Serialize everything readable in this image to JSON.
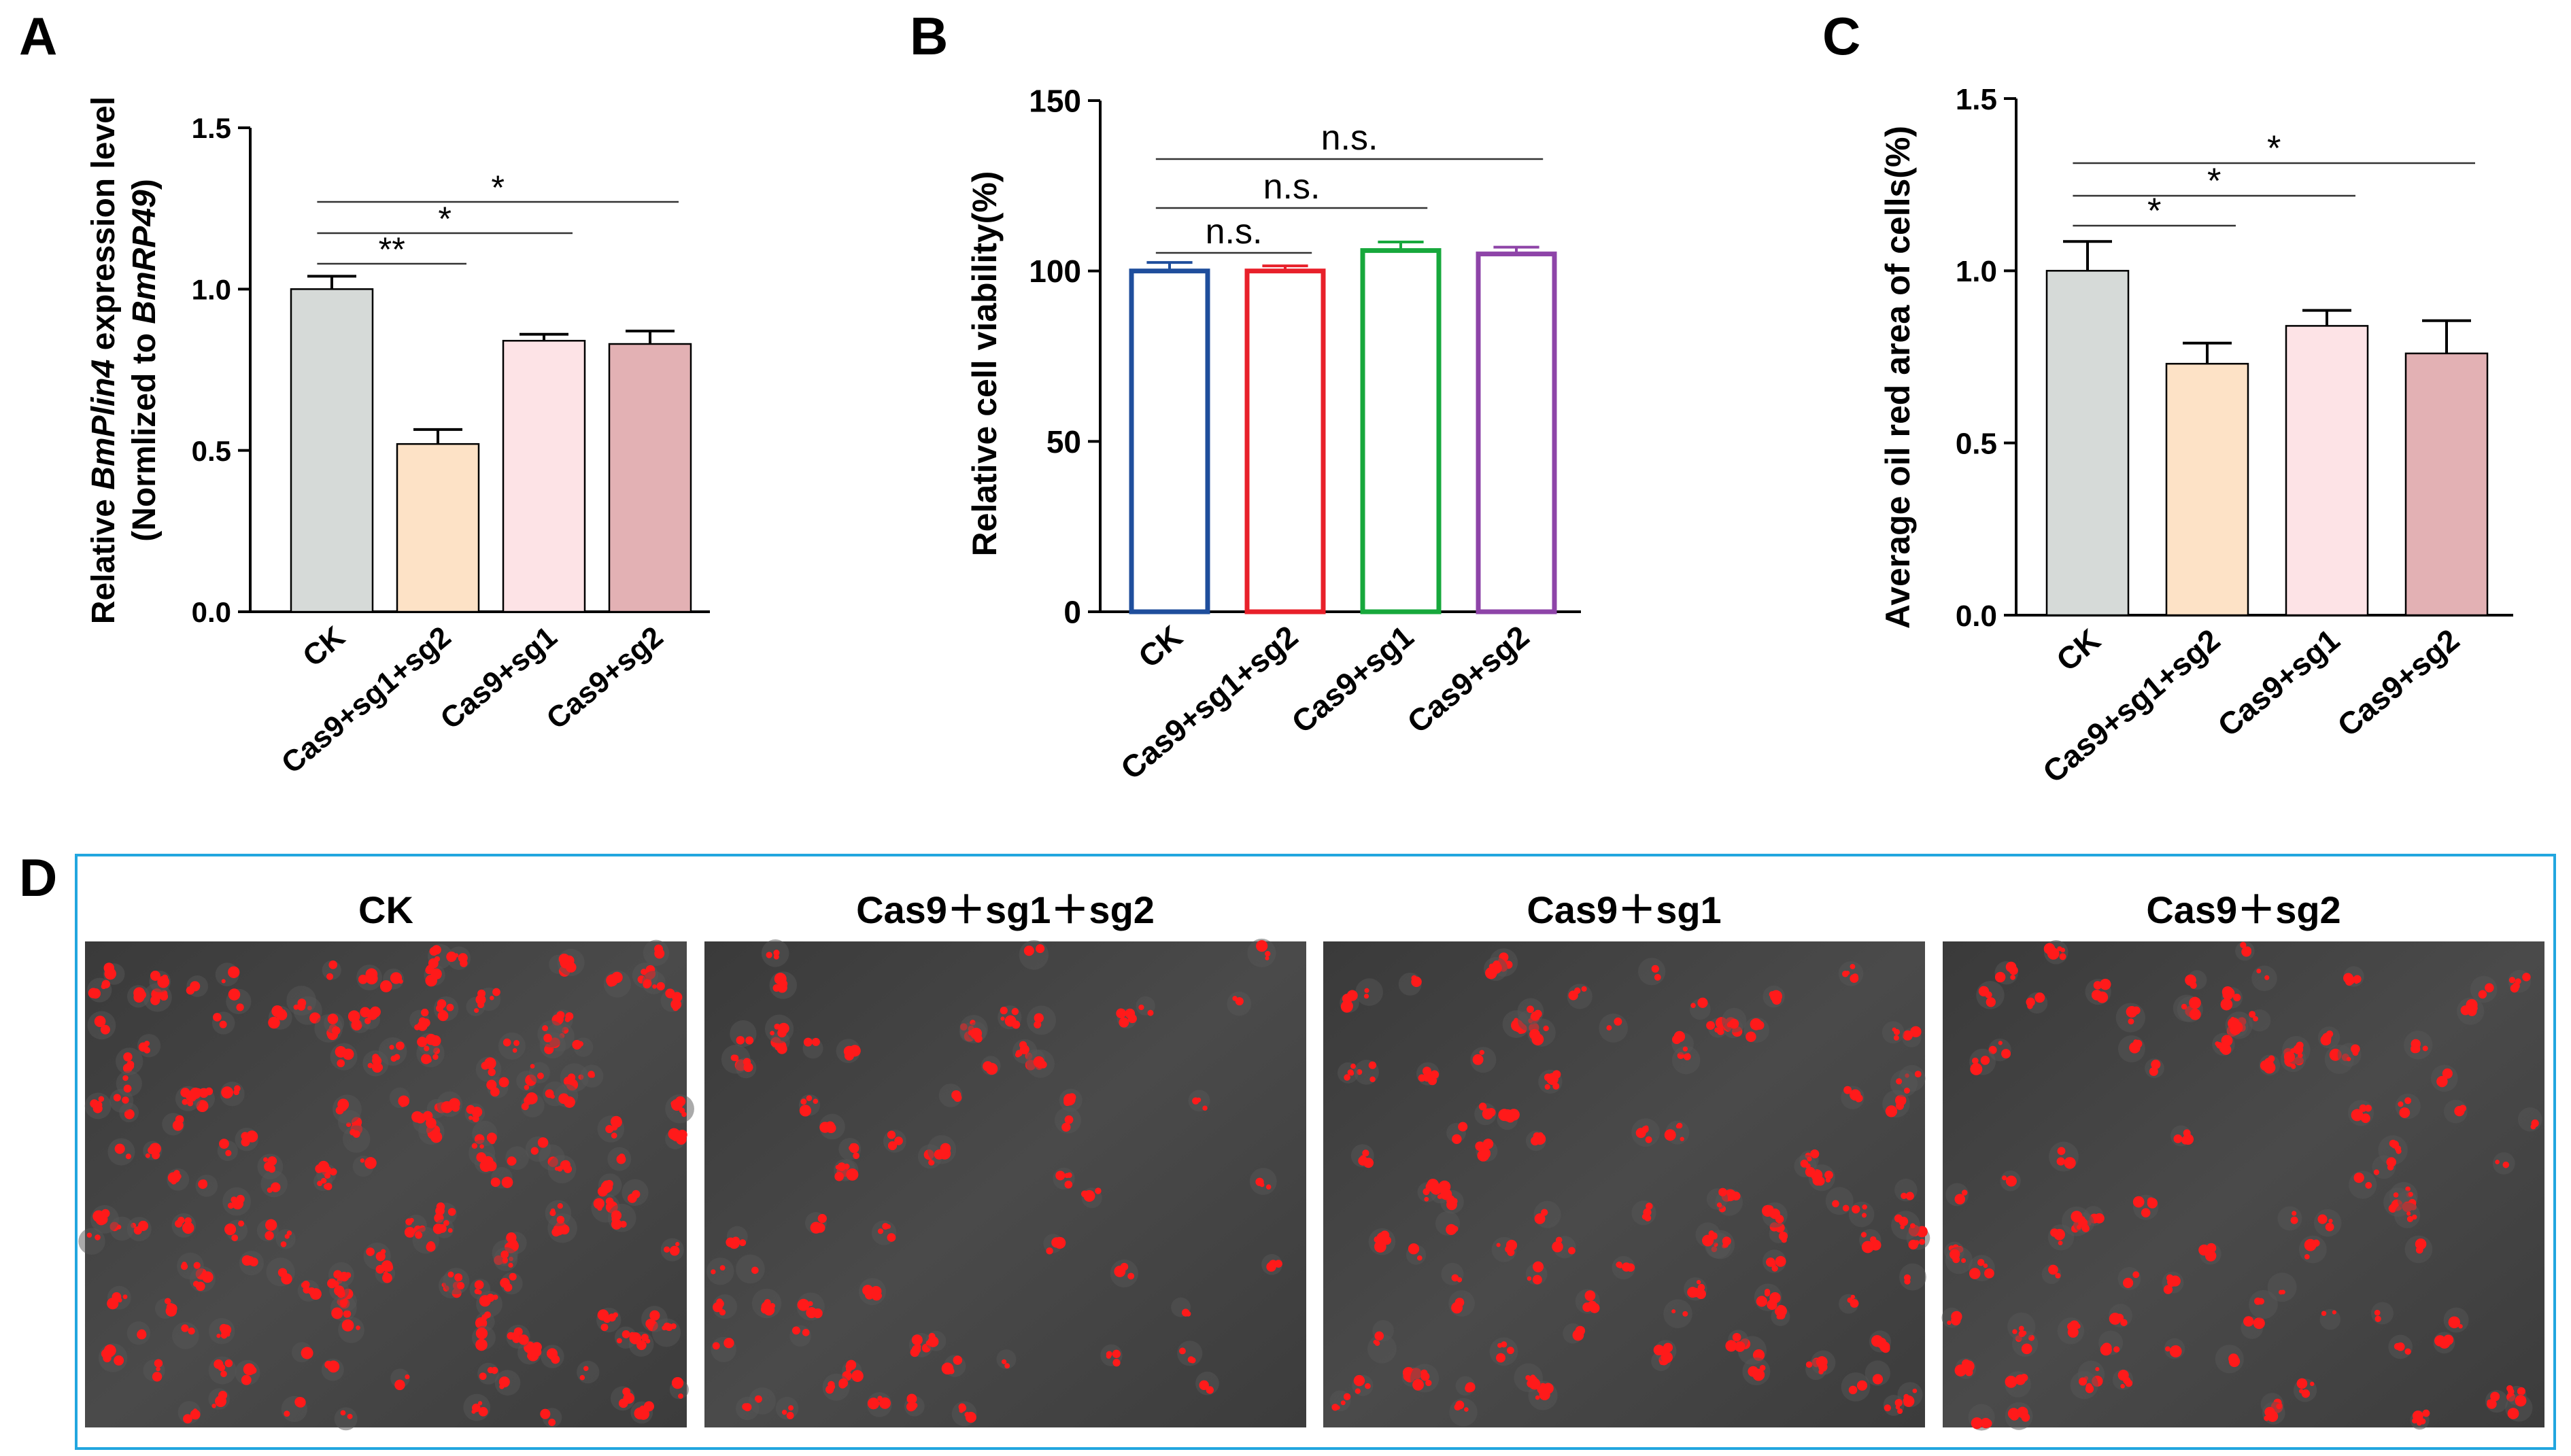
{
  "panel_letters": [
    "A",
    "B",
    "C",
    "D"
  ],
  "chart_data": [
    {
      "panel": "A",
      "type": "bar",
      "categories": [
        "CK",
        "Cas9+sg1+sg2",
        "Cas9+sg1",
        "Cas9+sg2"
      ],
      "values": [
        1.0,
        0.52,
        0.84,
        0.83
      ],
      "errors": [
        0.04,
        0.045,
        0.02,
        0.04
      ],
      "colors": [
        "#d6dad8",
        "#fde2c6",
        "#fde3e6",
        "#e3b1b4"
      ],
      "ylabel_prefix": "Relative ",
      "ylabel_gene": "BmPlin4",
      "ylabel_suffix": " expression level",
      "ylabel2_prefix": "(Normlized to ",
      "ylabel2_gene": "BmRP49",
      "ylabel2_suffix": ")",
      "ylim": [
        0,
        1.5
      ],
      "yticks": [
        "0.0",
        "0.5",
        "1.0",
        "1.5"
      ],
      "significance": [
        {
          "from": 0,
          "to": 1,
          "label": "**"
        },
        {
          "from": 0,
          "to": 2,
          "label": "*"
        },
        {
          "from": 0,
          "to": 3,
          "label": "*"
        }
      ]
    },
    {
      "panel": "B",
      "type": "bar",
      "categories": [
        "CK",
        "Cas9+sg1+sg2",
        "Cas9+sg1",
        "Cas9+sg2"
      ],
      "values": [
        100,
        100,
        106,
        105
      ],
      "errors": [
        2.5,
        1.5,
        2.5,
        2.0
      ],
      "colors": [
        "#1f4e9c",
        "#e8202a",
        "#17a83c",
        "#8e44a8"
      ],
      "ylabel": "Relative cell viability(%)",
      "ylim": [
        0,
        150
      ],
      "yticks": [
        "0",
        "50",
        "100",
        "150"
      ],
      "significance": [
        {
          "from": 0,
          "to": 1,
          "label": "n.s."
        },
        {
          "from": 0,
          "to": 2,
          "label": "n.s."
        },
        {
          "from": 0,
          "to": 3,
          "label": "n.s."
        }
      ]
    },
    {
      "panel": "C",
      "type": "bar",
      "categories": [
        "CK",
        "Cas9+sg1+sg2",
        "Cas9+sg1",
        "Cas9+sg2"
      ],
      "values": [
        1.0,
        0.73,
        0.84,
        0.76
      ],
      "errors": [
        0.085,
        0.06,
        0.045,
        0.095
      ],
      "colors": [
        "#d6dad8",
        "#fde2c6",
        "#fde3e6",
        "#e3b1b4"
      ],
      "ylabel": "Average oil red area of cells(%)",
      "ylim": [
        0,
        1.5
      ],
      "yticks": [
        "0.0",
        "0.5",
        "1.0",
        "1.5"
      ],
      "significance": [
        {
          "from": 0,
          "to": 1,
          "label": "*"
        },
        {
          "from": 0,
          "to": 2,
          "label": "*"
        },
        {
          "from": 0,
          "to": 3,
          "label": "*"
        }
      ]
    }
  ],
  "micrographs": {
    "labels": [
      "CK",
      "Cas9＋sg1＋sg2",
      "Cas9＋sg1",
      "Cas9＋sg2"
    ],
    "relative_staining": [
      1.0,
      0.4,
      0.6,
      0.55
    ]
  }
}
